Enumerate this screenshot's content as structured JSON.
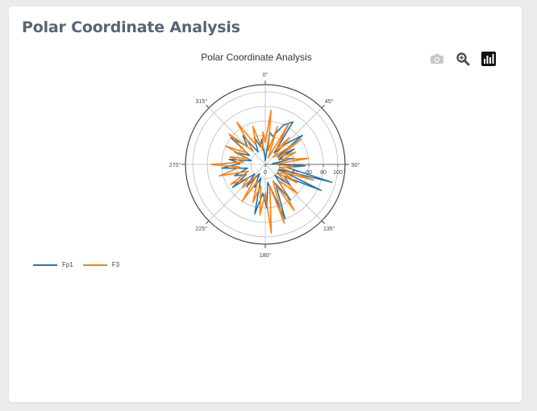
{
  "card": {
    "title": "Polar Coordinate Analysis"
  },
  "toolbar": {
    "icons": [
      "camera-icon",
      "zoom-icon",
      "bar-chart-icon"
    ]
  },
  "colors": {
    "Fp1": "#1f77b4",
    "F3": "#ff7f0e",
    "grid": "#bbbbbb",
    "axis": "#444444"
  },
  "chart_data": {
    "type": "line",
    "subtype": "polar",
    "title": "Polar Coordinate Analysis",
    "angular_axis": {
      "direction": "clockwise",
      "rotation": 0,
      "ticks": [
        "0°",
        "45°",
        "90°",
        "135°",
        "180°",
        "225°",
        "270°",
        "315°"
      ]
    },
    "radial_axis": {
      "range": [
        0,
        110
      ],
      "ticks": [
        "0",
        "20",
        "40",
        "60",
        "80",
        "100"
      ],
      "tick_values": [
        0,
        20,
        40,
        60,
        80,
        100
      ],
      "angle": 90
    },
    "legend_position": "bottom-left",
    "series": [
      {
        "name": "Fp1",
        "points": [
          [
            0,
            5
          ],
          [
            8,
            45
          ],
          [
            15,
            40
          ],
          [
            25,
            60
          ],
          [
            33,
            70
          ],
          [
            38,
            20
          ],
          [
            45,
            40
          ],
          [
            52,
            65
          ],
          [
            58,
            20
          ],
          [
            62,
            45
          ],
          [
            70,
            20
          ],
          [
            78,
            40
          ],
          [
            85,
            10
          ],
          [
            92,
            55
          ],
          [
            98,
            30
          ],
          [
            105,
            95
          ],
          [
            110,
            20
          ],
          [
            115,
            85
          ],
          [
            122,
            30
          ],
          [
            130,
            45
          ],
          [
            138,
            20
          ],
          [
            145,
            60
          ],
          [
            152,
            30
          ],
          [
            160,
            80
          ],
          [
            165,
            40
          ],
          [
            172,
            25
          ],
          [
            178,
            60
          ],
          [
            185,
            40
          ],
          [
            192,
            70
          ],
          [
            198,
            20
          ],
          [
            205,
            35
          ],
          [
            212,
            15
          ],
          [
            220,
            40
          ],
          [
            228,
            20
          ],
          [
            235,
            55
          ],
          [
            242,
            30
          ],
          [
            250,
            45
          ],
          [
            258,
            25
          ],
          [
            265,
            60
          ],
          [
            272,
            35
          ],
          [
            278,
            50
          ],
          [
            285,
            20
          ],
          [
            292,
            45
          ],
          [
            300,
            25
          ],
          [
            308,
            60
          ],
          [
            315,
            35
          ],
          [
            322,
            50
          ],
          [
            330,
            20
          ],
          [
            338,
            40
          ],
          [
            345,
            25
          ],
          [
            352,
            35
          ],
          [
            358,
            10
          ]
        ]
      },
      {
        "name": "F3",
        "points": [
          [
            0,
            30
          ],
          [
            6,
            75
          ],
          [
            12,
            20
          ],
          [
            18,
            55
          ],
          [
            24,
            10
          ],
          [
            30,
            65
          ],
          [
            36,
            25
          ],
          [
            42,
            50
          ],
          [
            48,
            15
          ],
          [
            55,
            60
          ],
          [
            62,
            20
          ],
          [
            68,
            45
          ],
          [
            75,
            25
          ],
          [
            82,
            60
          ],
          [
            88,
            15
          ],
          [
            95,
            40
          ],
          [
            102,
            20
          ],
          [
            108,
            70
          ],
          [
            114,
            25
          ],
          [
            120,
            50
          ],
          [
            126,
            20
          ],
          [
            132,
            60
          ],
          [
            140,
            30
          ],
          [
            148,
            75
          ],
          [
            155,
            25
          ],
          [
            162,
            85
          ],
          [
            168,
            30
          ],
          [
            175,
            95
          ],
          [
            180,
            40
          ],
          [
            186,
            70
          ],
          [
            192,
            30
          ],
          [
            198,
            55
          ],
          [
            205,
            25
          ],
          [
            212,
            60
          ],
          [
            218,
            20
          ],
          [
            225,
            45
          ],
          [
            232,
            30
          ],
          [
            240,
            55
          ],
          [
            248,
            25
          ],
          [
            256,
            65
          ],
          [
            264,
            35
          ],
          [
            270,
            75
          ],
          [
            276,
            30
          ],
          [
            282,
            50
          ],
          [
            288,
            25
          ],
          [
            295,
            60
          ],
          [
            302,
            30
          ],
          [
            310,
            65
          ],
          [
            318,
            25
          ],
          [
            326,
            70
          ],
          [
            334,
            30
          ],
          [
            342,
            55
          ],
          [
            350,
            20
          ],
          [
            356,
            45
          ]
        ]
      }
    ]
  }
}
